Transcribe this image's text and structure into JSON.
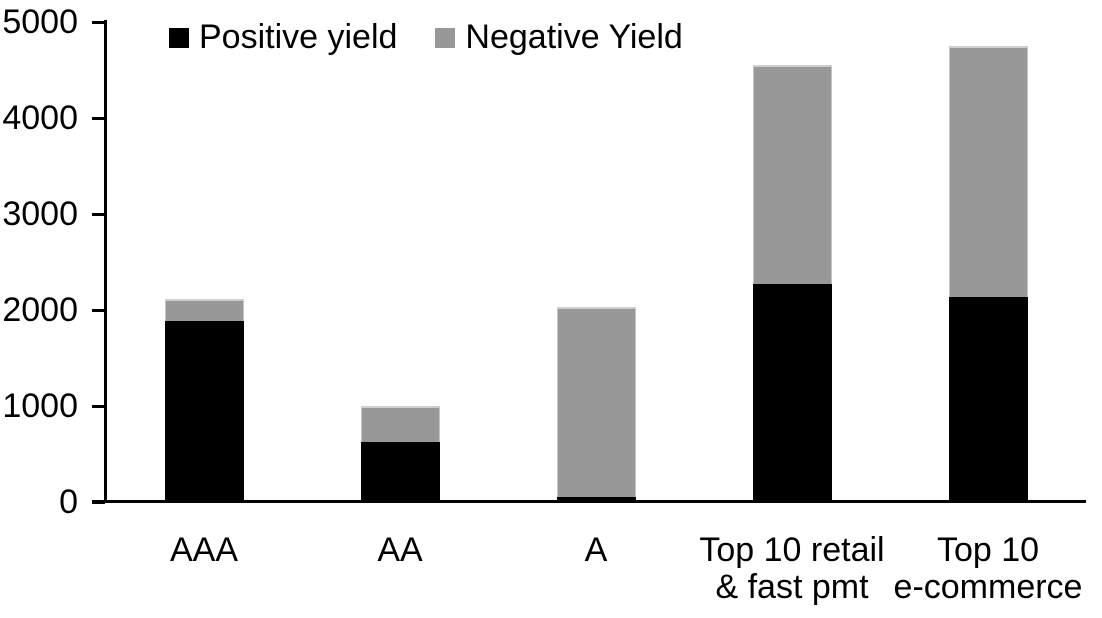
{
  "page": {
    "background_color": "#ffffff"
  },
  "chart_data": {
    "type": "bar",
    "stacked": true,
    "title": "",
    "xlabel": "",
    "ylabel": "",
    "categories": [
      "AAA",
      "AA",
      "A",
      "Top 10 retail\n& fast pmt",
      "Top 10\ne-commerce"
    ],
    "series": [
      {
        "name": "Positive yield",
        "color": "#000000",
        "values": [
          1890,
          620,
          50,
          2270,
          2140
        ]
      },
      {
        "name": "Negative Yield",
        "color": "#989898",
        "values": [
          220,
          380,
          1980,
          2280,
          2610
        ]
      }
    ],
    "totals": [
      2110,
      1000,
      2030,
      4550,
      4750
    ],
    "ylim": [
      0,
      5000
    ],
    "yticks": [
      0,
      1000,
      2000,
      3000,
      4000,
      5000
    ],
    "grid": false,
    "legend_position": "top",
    "axis_color": "#000000",
    "negative_segment_border_color": "#cfcfcf"
  }
}
